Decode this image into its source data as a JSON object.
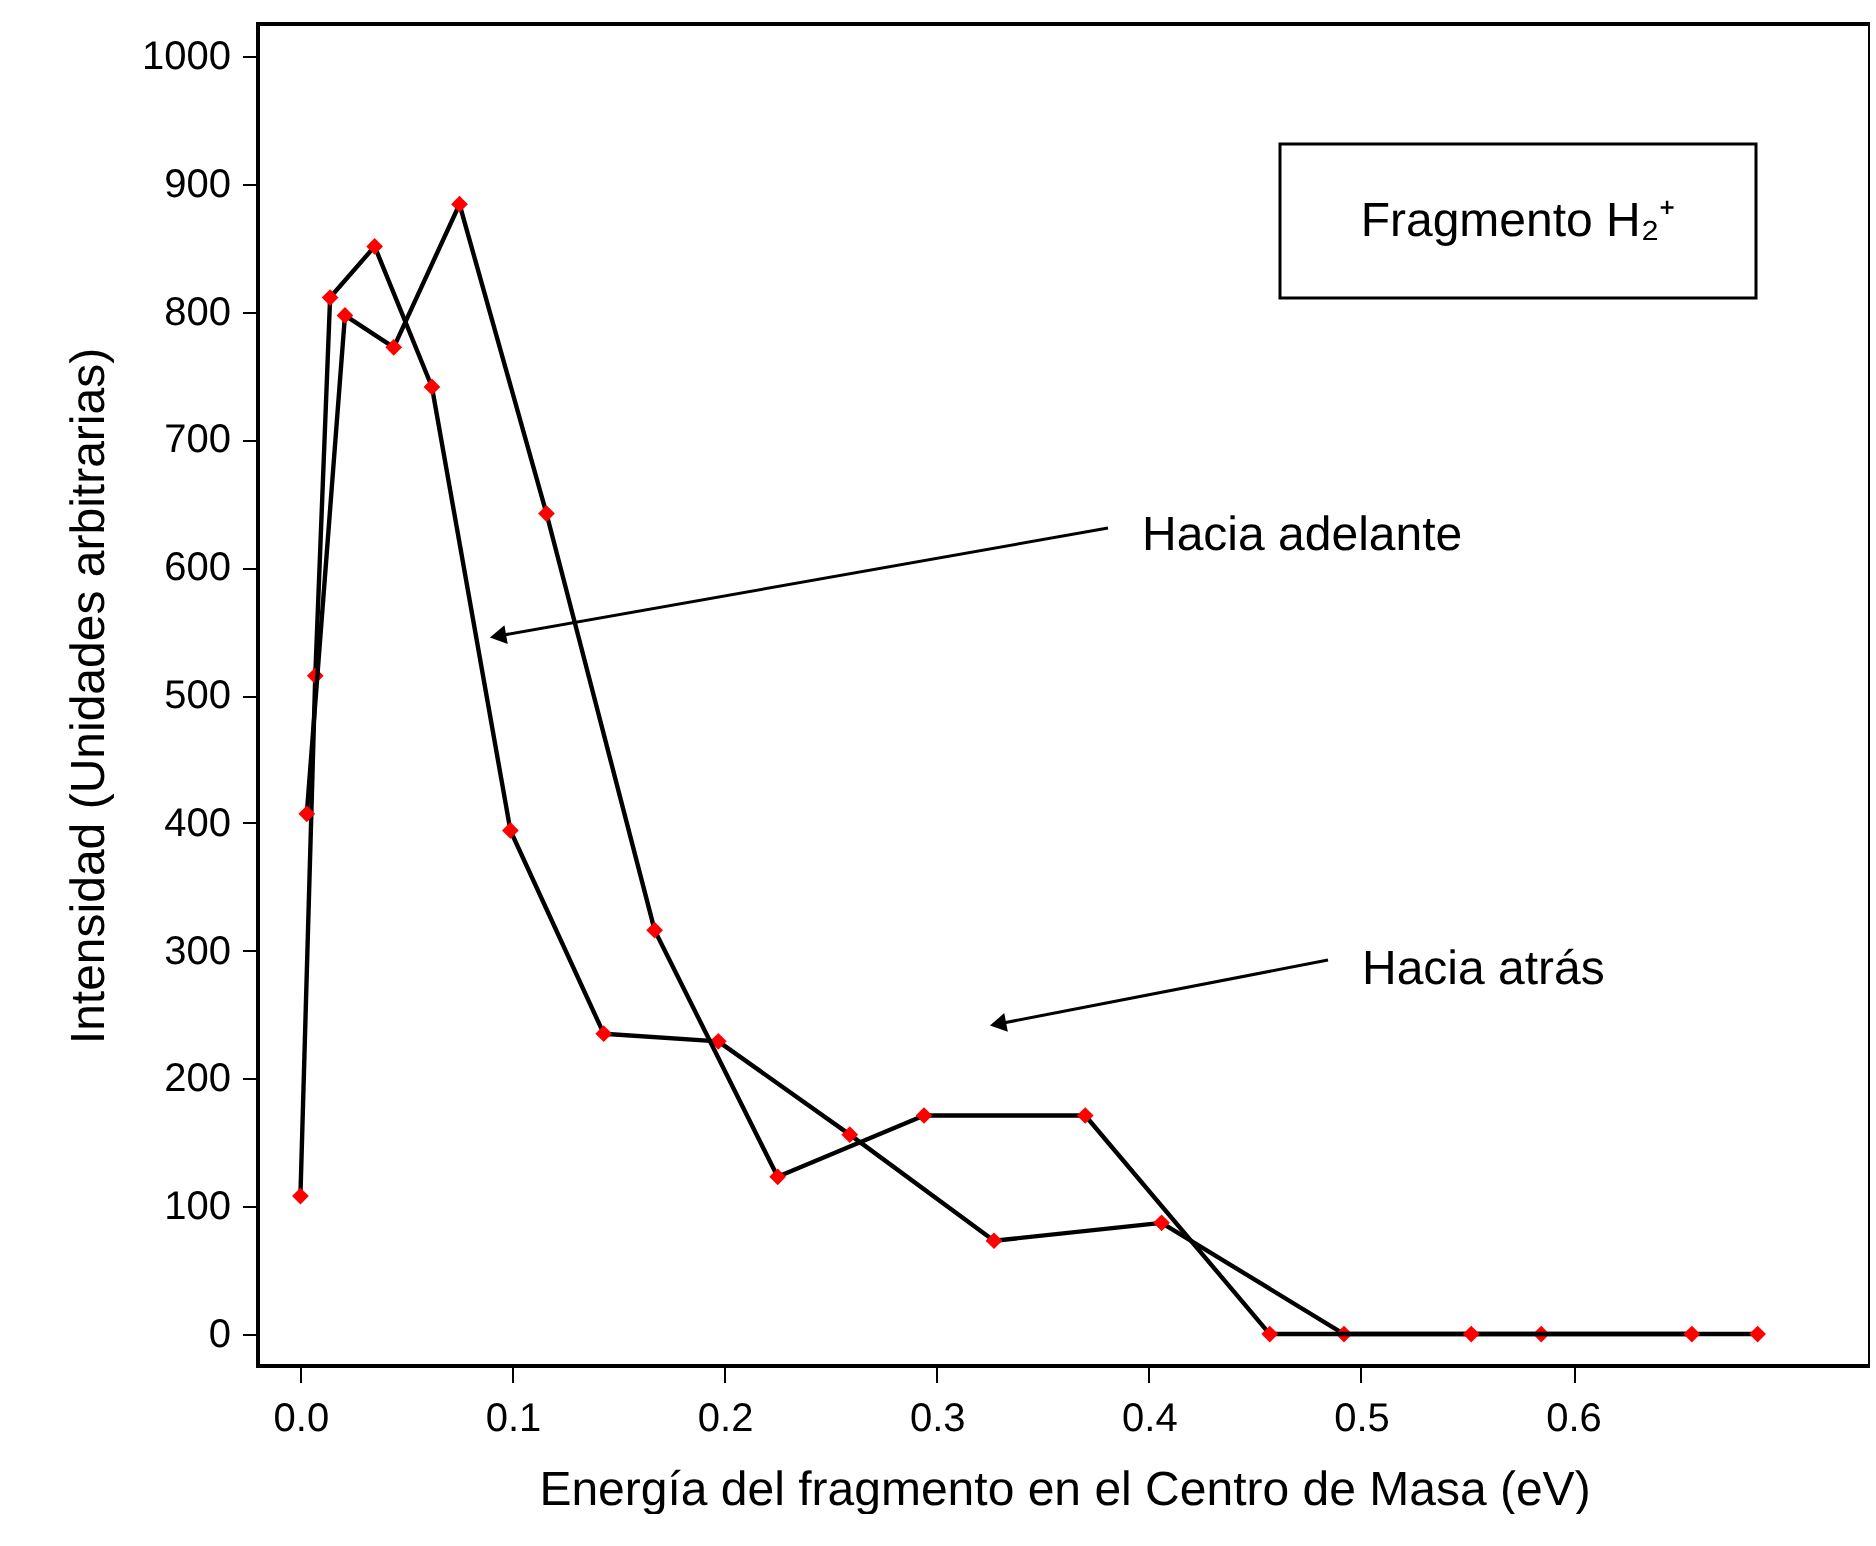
{
  "chart_data": {
    "type": "line",
    "title": "Fragmento H₂⁺",
    "xlabel": "Energía del fragmento en el Centro de Masa (eV)",
    "ylabel": "Intensidad (Unidades arbitrarias)",
    "xlim": [
      -0.02,
      0.74
    ],
    "xticks": [
      {
        "value": 0,
        "label": "0.0"
      },
      0.1,
      0.2,
      0.3,
      0.4,
      0.5,
      0.6
    ],
    "ylim": [
      -25,
      1025
    ],
    "yticks": [
      0,
      100,
      200,
      300,
      400,
      500,
      600,
      700,
      800,
      900,
      1000
    ],
    "grid": false,
    "marker": "diamond",
    "line_style": "solid",
    "series": [
      {
        "color": "#000000",
        "x": [
          0.0,
          0.007,
          0.014,
          0.035,
          0.062,
          0.099,
          0.143,
          0.197,
          0.259,
          0.327,
          0.406,
          0.492,
          0.585,
          0.687
        ],
        "values": [
          108,
          515,
          811,
          851,
          741,
          394,
          235,
          229,
          156,
          73,
          87,
          0,
          0,
          0
        ]
      },
      {
        "color": "#000000",
        "x": [
          0.003,
          0.021,
          0.044,
          0.075,
          0.116,
          0.167,
          0.225,
          0.294,
          0.37,
          0.457,
          0.552,
          0.656
        ],
        "values": [
          407,
          797,
          772,
          884,
          642,
          316,
          123,
          171,
          171,
          0,
          0,
          0
        ]
      }
    ],
    "annotations": [
      "Hacia adelante",
      "Hacia atrás"
    ]
  }
}
